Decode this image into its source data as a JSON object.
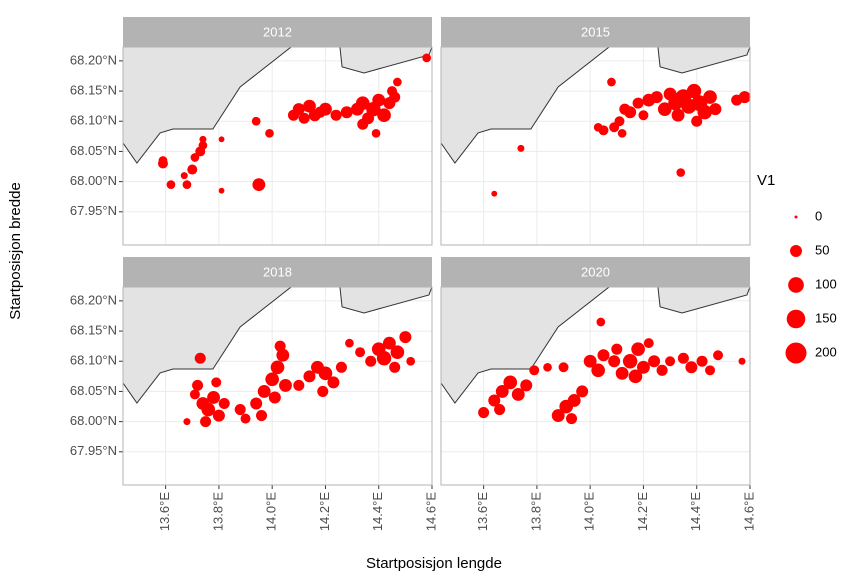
{
  "chart_data": {
    "type": "scatter",
    "color": "#ff0000",
    "xlabel": "Startposisjon lengde",
    "ylabel": "Startposisjon bredde",
    "xlim": [
      13.44,
      14.6
    ],
    "ylim": [
      67.895,
      68.223
    ],
    "xticks": [
      {
        "value": 13.6,
        "label": "13.6°E"
      },
      {
        "value": 13.8,
        "label": "13.8°E"
      },
      {
        "value": 14.0,
        "label": "14.0°E"
      },
      {
        "value": 14.2,
        "label": "14.2°E"
      },
      {
        "value": 14.4,
        "label": "14.4°E"
      },
      {
        "value": 14.6,
        "label": "14.6°E"
      }
    ],
    "yticks": [
      {
        "value": 67.95,
        "label": "67.95°N"
      },
      {
        "value": 68.0,
        "label": "68.00°N"
      },
      {
        "value": 68.05,
        "label": "68.05°N"
      },
      {
        "value": 68.1,
        "label": "68.10°N"
      },
      {
        "value": 68.15,
        "label": "68.15°N"
      },
      {
        "value": 68.2,
        "label": "68.20°N"
      }
    ],
    "grid": true,
    "size_legend": {
      "title": "V1",
      "values": [
        0,
        50,
        100,
        150,
        200
      ]
    },
    "panels": [
      {
        "title": "2012",
        "x": [
          13.59,
          13.59,
          13.62,
          13.67,
          13.68,
          13.7,
          13.71,
          13.73,
          13.74,
          13.74,
          13.81,
          13.81,
          13.95,
          13.94,
          13.99,
          14.08,
          14.1,
          14.12,
          14.14,
          14.16,
          14.18,
          14.2,
          14.24,
          14.28,
          14.32,
          14.34,
          14.36,
          14.38,
          14.4,
          14.42,
          14.44,
          14.39,
          14.45,
          14.47,
          14.46,
          14.58,
          14.34
        ],
        "y": [
          68.03,
          68.035,
          67.995,
          68.01,
          67.995,
          68.02,
          68.04,
          68.05,
          68.06,
          68.07,
          68.07,
          67.985,
          67.995,
          68.1,
          68.08,
          68.11,
          68.12,
          68.105,
          68.125,
          68.11,
          68.115,
          68.12,
          68.11,
          68.115,
          68.12,
          68.13,
          68.105,
          68.12,
          68.135,
          68.11,
          68.13,
          68.08,
          68.15,
          68.165,
          68.14,
          68.205,
          68.095
        ],
        "size": [
          30,
          20,
          20,
          10,
          20,
          30,
          20,
          30,
          20,
          10,
          5,
          5,
          60,
          20,
          20,
          40,
          50,
          40,
          60,
          50,
          40,
          60,
          40,
          50,
          60,
          70,
          50,
          80,
          60,
          70,
          50,
          20,
          30,
          20,
          40,
          20,
          40
        ]
      },
      {
        "title": "2015",
        "x": [
          13.64,
          13.74,
          14.05,
          14.08,
          14.11,
          14.13,
          14.15,
          14.18,
          14.2,
          14.22,
          14.25,
          14.28,
          14.3,
          14.32,
          14.35,
          14.37,
          14.39,
          14.41,
          14.43,
          14.45,
          14.47,
          14.4,
          14.33,
          14.55,
          14.58,
          14.34,
          14.03,
          14.12,
          14.09
        ],
        "y": [
          67.98,
          68.055,
          68.085,
          68.165,
          68.1,
          68.12,
          68.115,
          68.13,
          68.11,
          68.135,
          68.14,
          68.12,
          68.145,
          68.13,
          68.14,
          68.125,
          68.15,
          68.13,
          68.115,
          68.14,
          68.12,
          68.1,
          68.11,
          68.135,
          68.14,
          68.015,
          68.09,
          68.08,
          68.09
        ],
        "size": [
          5,
          10,
          30,
          20,
          30,
          40,
          50,
          40,
          30,
          60,
          50,
          70,
          60,
          80,
          100,
          90,
          80,
          100,
          80,
          70,
          50,
          40,
          60,
          40,
          50,
          20,
          20,
          20,
          30
        ]
      },
      {
        "title": "2018",
        "x": [
          13.68,
          13.73,
          13.72,
          13.74,
          13.76,
          13.78,
          13.8,
          13.75,
          13.82,
          13.71,
          13.79,
          13.88,
          13.9,
          13.94,
          13.97,
          14.0,
          14.02,
          14.04,
          14.03,
          14.01,
          14.05,
          13.96,
          14.1,
          14.14,
          14.17,
          14.2,
          14.23,
          14.19,
          14.26,
          14.29,
          14.37,
          14.4,
          14.42,
          14.44,
          14.47,
          14.5,
          14.46,
          14.52,
          14.33
        ],
        "y": [
          68.0,
          68.105,
          68.06,
          68.03,
          68.02,
          68.04,
          68.01,
          68.0,
          68.03,
          68.045,
          68.065,
          68.02,
          68.005,
          68.03,
          68.05,
          68.07,
          68.09,
          68.11,
          68.125,
          68.04,
          68.06,
          68.01,
          68.06,
          68.075,
          68.09,
          68.08,
          68.065,
          68.05,
          68.09,
          68.13,
          68.1,
          68.12,
          68.105,
          68.13,
          68.115,
          68.14,
          68.09,
          68.1,
          68.115
        ],
        "size": [
          10,
          40,
          40,
          60,
          70,
          60,
          50,
          40,
          40,
          30,
          30,
          40,
          30,
          50,
          60,
          70,
          70,
          60,
          40,
          50,
          60,
          40,
          40,
          50,
          60,
          70,
          50,
          40,
          40,
          20,
          40,
          70,
          80,
          60,
          70,
          50,
          40,
          20,
          30
        ]
      },
      {
        "title": "2020",
        "x": [
          13.6,
          13.64,
          13.67,
          13.7,
          13.73,
          13.76,
          13.79,
          13.66,
          13.84,
          13.88,
          13.91,
          13.94,
          13.97,
          13.93,
          13.9,
          14.0,
          14.03,
          14.05,
          14.04,
          14.09,
          14.12,
          14.15,
          14.18,
          14.2,
          14.17,
          14.24,
          14.27,
          14.3,
          14.35,
          14.38,
          14.42,
          14.45,
          14.48,
          14.57,
          14.1,
          14.22
        ],
        "y": [
          68.015,
          68.035,
          68.05,
          68.065,
          68.045,
          68.06,
          68.085,
          68.02,
          68.09,
          68.01,
          68.025,
          68.035,
          68.05,
          68.005,
          68.09,
          68.1,
          68.085,
          68.11,
          68.165,
          68.1,
          68.08,
          68.1,
          68.12,
          68.09,
          68.075,
          68.1,
          68.085,
          68.1,
          68.105,
          68.09,
          68.1,
          68.085,
          68.11,
          68.1,
          68.12,
          68.13
        ],
        "size": [
          40,
          50,
          60,
          70,
          60,
          50,
          30,
          40,
          20,
          60,
          70,
          60,
          50,
          40,
          30,
          60,
          70,
          50,
          20,
          50,
          60,
          80,
          70,
          60,
          70,
          50,
          40,
          30,
          40,
          50,
          40,
          30,
          30,
          10,
          40,
          30
        ]
      }
    ]
  }
}
